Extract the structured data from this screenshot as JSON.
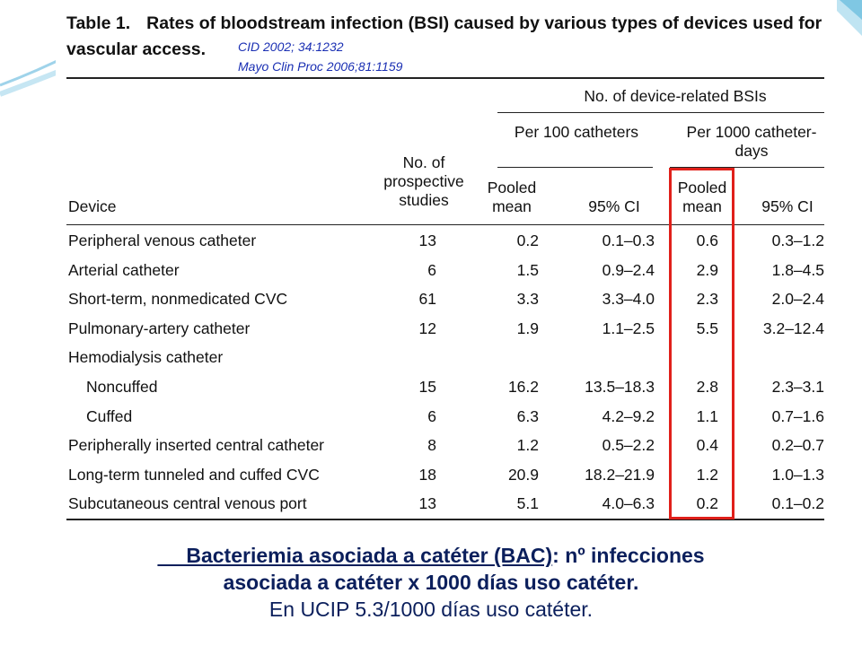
{
  "table": {
    "title_label": "Table 1.",
    "title_text": "Rates of bloodstream infection (BSI) caused by various types of devices used for vascular access.",
    "citations": [
      "CID 2002; 34:1232",
      "Mayo Clin Proc 2006;81:1159"
    ],
    "headers": {
      "device": "Device",
      "studies": "No. of prospective studies",
      "bsis": "No. of device-related BSIs",
      "per100": "Per 100 catheters",
      "per1000": "Per 1000 catheter-days",
      "pooled_mean": "Pooled mean",
      "ci": "95% CI"
    },
    "rows": [
      {
        "device": "Peripheral venous catheter",
        "studies": "13",
        "pm100": "0.2",
        "ci100": "0.1–0.3",
        "pm1000": "0.6",
        "ci1000": "0.3–1.2"
      },
      {
        "device": "Arterial catheter",
        "studies": "6",
        "pm100": "1.5",
        "ci100": "0.9–2.4",
        "pm1000": "2.9",
        "ci1000": "1.8–4.5"
      },
      {
        "device": "Short-term, nonmedicated CVC",
        "studies": "61",
        "pm100": "3.3",
        "ci100": "3.3–4.0",
        "pm1000": "2.3",
        "ci1000": "2.0–2.4"
      },
      {
        "device": "Pulmonary-artery catheter",
        "studies": "12",
        "pm100": "1.9",
        "ci100": "1.1–2.5",
        "pm1000": "5.5",
        "ci1000": "3.2–12.4"
      },
      {
        "device": "Hemodialysis catheter",
        "studies": "",
        "pm100": "",
        "ci100": "",
        "pm1000": "",
        "ci1000": ""
      },
      {
        "device": "Noncuffed",
        "studies": "15",
        "pm100": "16.2",
        "ci100": "13.5–18.3",
        "pm1000": "2.8",
        "ci1000": "2.3–3.1",
        "sub": true
      },
      {
        "device": "Cuffed",
        "studies": "6",
        "pm100": "6.3",
        "ci100": "4.2–9.2",
        "pm1000": "1.1",
        "ci1000": "0.7–1.6",
        "sub": true
      },
      {
        "device": "Peripherally inserted central catheter",
        "studies": "8",
        "pm100": "1.2",
        "ci100": "0.5–2.2",
        "pm1000": "0.4",
        "ci1000": "0.2–0.7"
      },
      {
        "device": "Long-term tunneled and cuffed CVC",
        "studies": "18",
        "pm100": "20.9",
        "ci100": "18.2–21.9",
        "pm1000": "1.2",
        "ci1000": "1.0–1.3"
      },
      {
        "device": "Subcutaneous central venous port",
        "studies": "13",
        "pm100": "5.1",
        "ci100": "4.0–6.3",
        "pm1000": "0.2",
        "ci1000": "0.1–0.2"
      }
    ]
  },
  "caption": {
    "line1_prefix": "     Bacteriemia asociada a catéter (BAC)",
    "line1_suffix": ": nº infecciones",
    "line2": "asociada a catéter x 1000 días uso catéter.",
    "line3": "En  UCIP 5.3/1000 días uso catéter."
  },
  "colors": {
    "highlight": "#e0201a",
    "citation": "#1a2fb3",
    "caption": "#0b1f5c"
  }
}
